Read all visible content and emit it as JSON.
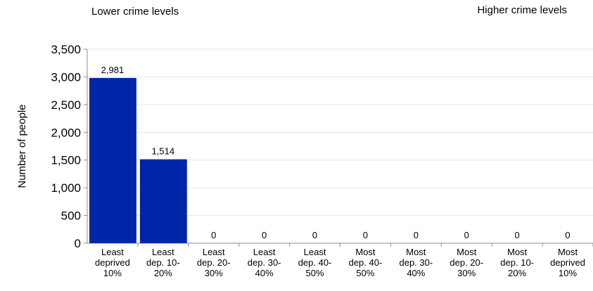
{
  "annotations": {
    "left": "Lower crime levels",
    "right": "Higher crime levels"
  },
  "chart_data": {
    "type": "bar",
    "title": "",
    "xlabel": "",
    "ylabel": "Number of people",
    "ylim": [
      0,
      3500
    ],
    "yticks": [
      "0",
      "500",
      "1,000",
      "1,500",
      "2,000",
      "2,500",
      "3,000",
      "3,500"
    ],
    "yticks_values": [
      0,
      500,
      1000,
      1500,
      2000,
      2500,
      3000,
      3500
    ],
    "grid": true,
    "categories": [
      [
        "Least",
        "deprived",
        "10%"
      ],
      [
        "Least",
        "dep. 10-",
        "20%"
      ],
      [
        "Least",
        "dep. 20-",
        "30%"
      ],
      [
        "Least",
        "dep. 30-",
        "40%"
      ],
      [
        "Least",
        "dep. 40-",
        "50%"
      ],
      [
        "Most",
        "dep. 40-",
        "50%"
      ],
      [
        "Most",
        "dep. 30-",
        "40%"
      ],
      [
        "Most",
        "dep. 20-",
        "30%"
      ],
      [
        "Most",
        "dep. 10-",
        "20%"
      ],
      [
        "Most",
        "deprived",
        "10%"
      ]
    ],
    "values": [
      2981,
      1514,
      0,
      0,
      0,
      0,
      0,
      0,
      0,
      0
    ],
    "data_labels": [
      "2,981",
      "1,514",
      "0",
      "0",
      "0",
      "0",
      "0",
      "0",
      "0",
      "0"
    ],
    "bar_color": "#0026A8",
    "grid_color": "#E6E6E6",
    "axis_color": "#8C8C8C"
  }
}
